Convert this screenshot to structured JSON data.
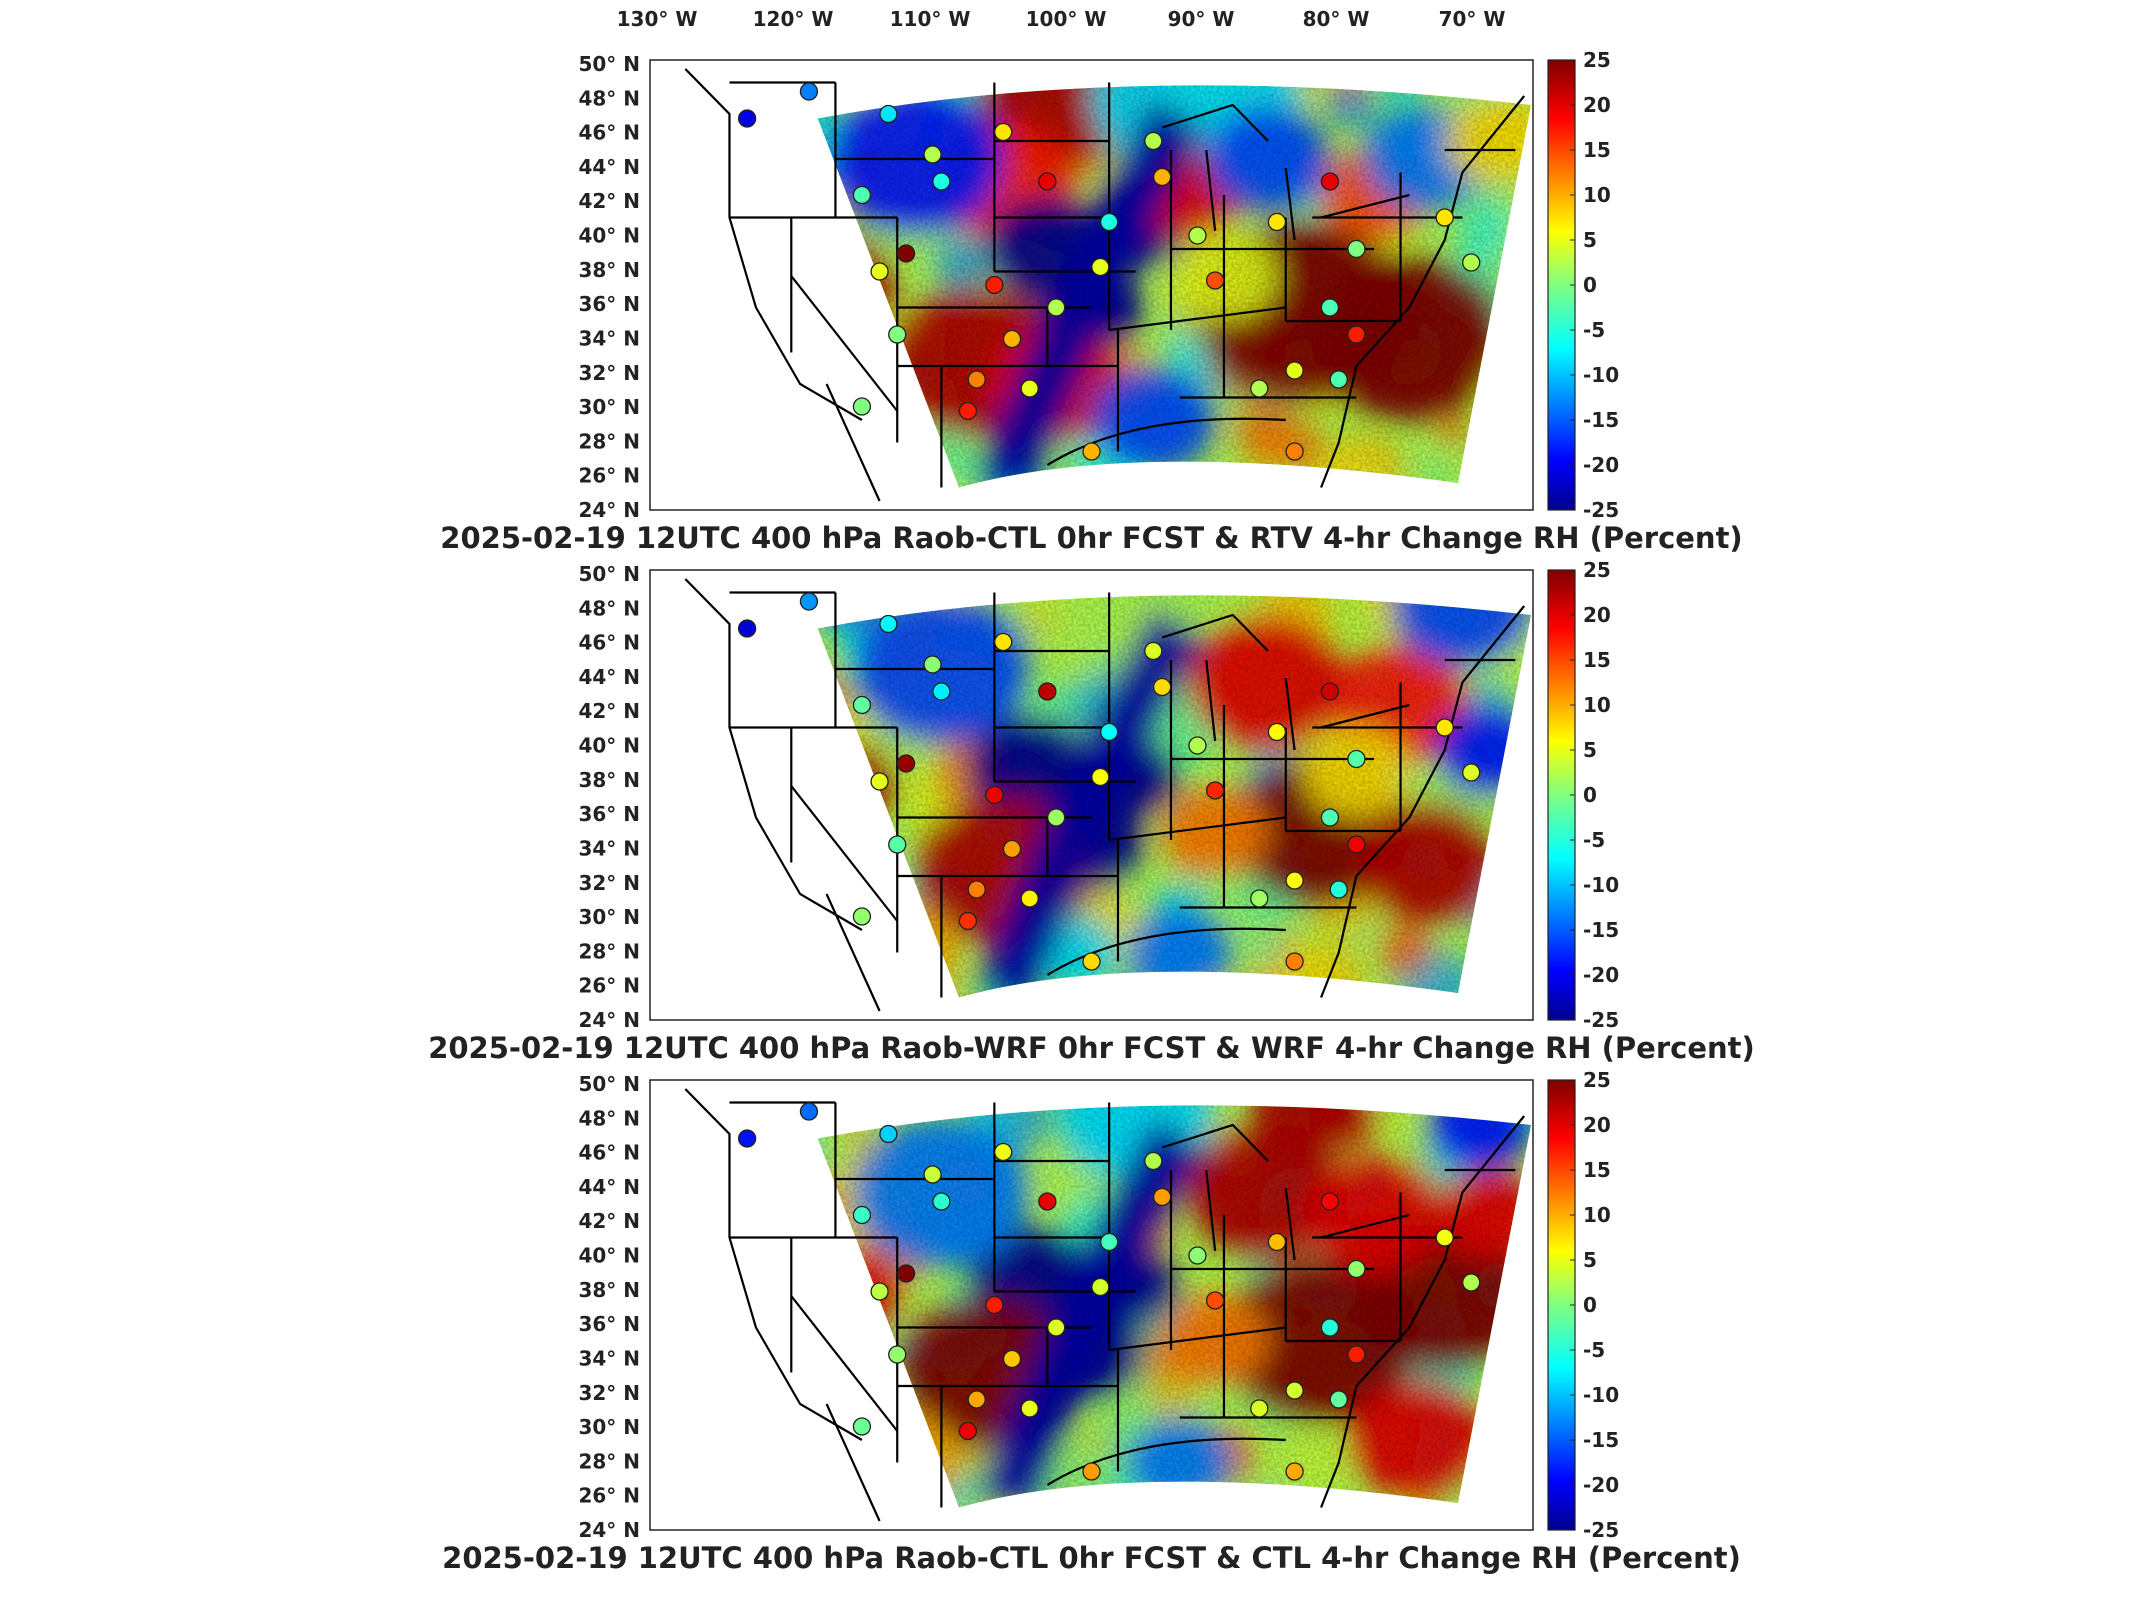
{
  "figure": {
    "top_lon_labels": [
      "130° W",
      "120° W",
      "110° W",
      "100° W",
      "90° W",
      "80° W",
      "70° W"
    ],
    "lat_labels": [
      "50° N",
      "48° N",
      "46° N",
      "44° N",
      "42° N",
      "40° N",
      "38° N",
      "36° N",
      "34° N",
      "32° N",
      "30° N",
      "28° N",
      "26° N",
      "24° N"
    ],
    "colorbar": {
      "ticks": [
        "25",
        "20",
        "15",
        "10",
        "5",
        "0",
        "-5",
        "-10",
        "-15",
        "-20",
        "-25"
      ],
      "range": [
        -25,
        25
      ],
      "colormap": "jet",
      "colors": [
        "#00008f",
        "#0000ff",
        "#0080ff",
        "#00ffff",
        "#80ff80",
        "#ffff00",
        "#ff8000",
        "#ff0000",
        "#800000"
      ]
    },
    "panels": [
      {
        "title": "2025-02-19 12UTC 400 hPa Raob-CTL 0hr FCST & RTV 4-hr Change RH (Percent)"
      },
      {
        "title": "2025-02-19 12UTC 400 hPa Raob-WRF 0hr FCST & WRF 4-hr Change RH (Percent)"
      },
      {
        "title": "2025-02-19 12UTC 400 hPa Raob-CTL 0hr FCST & CTL 4-hr Change RH (Percent)"
      }
    ]
  }
}
